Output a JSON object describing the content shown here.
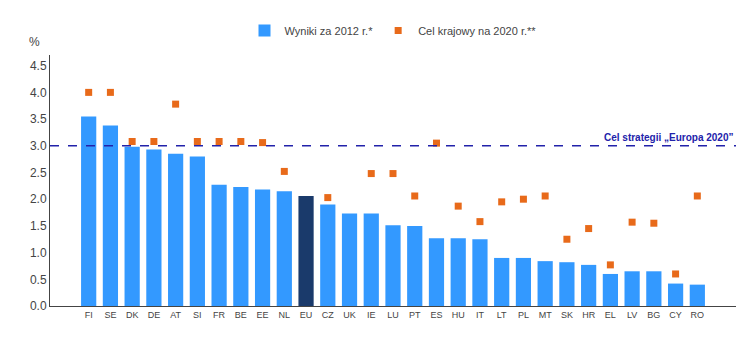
{
  "chart_data": {
    "type": "bar",
    "categories": [
      "FI",
      "SE",
      "DK",
      "DE",
      "AT",
      "SI",
      "FR",
      "BE",
      "EE",
      "NL",
      "EU",
      "CZ",
      "UK",
      "IE",
      "LU",
      "PT",
      "ES",
      "HU",
      "IT",
      "LT",
      "PL",
      "MT",
      "SK",
      "HR",
      "EL",
      "LV",
      "BG",
      "CY",
      "RO"
    ],
    "series": [
      {
        "name": "Wyniki za 2012 r.*",
        "type": "bar",
        "color": "#3399FF",
        "colors": [
          "#3399FF",
          "#3399FF",
          "#3399FF",
          "#3399FF",
          "#3399FF",
          "#3399FF",
          "#3399FF",
          "#3399FF",
          "#3399FF",
          "#3399FF",
          "#1a3a6b",
          "#3399FF",
          "#3399FF",
          "#3399FF",
          "#3399FF",
          "#3399FF",
          "#3399FF",
          "#3399FF",
          "#3399FF",
          "#3399FF",
          "#3399FF",
          "#3399FF",
          "#3399FF",
          "#3399FF",
          "#3399FF",
          "#3399FF",
          "#3399FF",
          "#3399FF",
          "#3399FF"
        ],
        "values": [
          3.55,
          3.38,
          2.98,
          2.93,
          2.85,
          2.8,
          2.27,
          2.23,
          2.18,
          2.15,
          2.06,
          1.9,
          1.73,
          1.73,
          1.51,
          1.5,
          1.27,
          1.27,
          1.25,
          0.9,
          0.9,
          0.84,
          0.82,
          0.77,
          0.6,
          0.65,
          0.65,
          0.42,
          0.4
        ]
      },
      {
        "name": "Cel krajowy na 2020 r.**",
        "type": "scatter",
        "color": "#E86A1A",
        "marker": "square",
        "values": [
          4.0,
          4.0,
          3.08,
          3.08,
          3.78,
          3.08,
          3.08,
          3.08,
          3.06,
          2.52,
          null,
          2.03,
          null,
          2.48,
          2.48,
          2.06,
          3.05,
          1.87,
          1.58,
          1.95,
          2.0,
          2.06,
          1.25,
          1.45,
          0.77,
          1.57,
          1.55,
          0.6,
          2.06
        ]
      }
    ],
    "hlines": [
      {
        "value": 3.0,
        "label": "Cel strategii „Europa 2020”",
        "color": "#2222AA",
        "line_style": "dashed"
      }
    ],
    "ylabel": "%",
    "ylim": [
      0,
      4.7
    ],
    "yticks": [
      {
        "value": 0,
        "label": "0.0"
      },
      0.5,
      {
        "value": 1,
        "label": "1.0"
      },
      1.5,
      {
        "value": 2,
        "label": "2.0"
      },
      2.5,
      {
        "value": 3,
        "label": "3.0"
      },
      3.5,
      {
        "value": 4,
        "label": "4.0"
      },
      4.5
    ],
    "grid": false,
    "legend": "top"
  }
}
